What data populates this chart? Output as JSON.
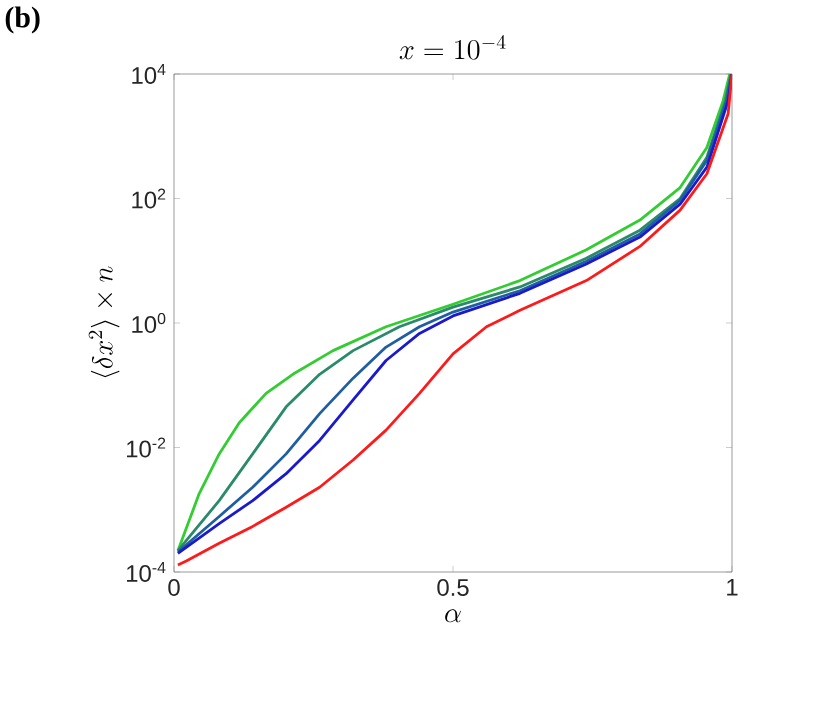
{
  "chart_data": {
    "type": "line",
    "title": "x = 10^{-4}",
    "xlabel": "\\alpha",
    "ylabel": "\\langle \\delta x^2 \\rangle \\times n",
    "annotations": [
      "(b)"
    ],
    "log": "y",
    "marker": "none",
    "line_style": "solid",
    "xlim": [
      0,
      1
    ],
    "xticks": [
      0,
      0.5,
      1
    ],
    "ylim": [
      0.0001,
      10000
    ],
    "yticks": [
      {
        "value": 0.0001,
        "label": "10$^{-4}$"
      },
      {
        "value": 0.01,
        "label": "10$^{-2}$"
      },
      {
        "value": 1,
        "label": "10$^{0}$"
      },
      {
        "value": 100,
        "label": "10$^{2}$"
      },
      {
        "value": 10000,
        "label": "10$^{4}$"
      }
    ],
    "series": [
      {
        "color": "#33cc33",
        "x": [
          0.007,
          0.045,
          0.081,
          0.117,
          0.165,
          0.213,
          0.285,
          0.38,
          0.5,
          0.62,
          0.739,
          0.835,
          0.907,
          0.955,
          0.984,
          0.996
        ],
        "values": [
          0.00022,
          0.0018,
          0.0079,
          0.025,
          0.074,
          0.15,
          0.36,
          0.87,
          2.0,
          4.8,
          15,
          45,
          150,
          660,
          3700,
          10000
        ]
      },
      {
        "color": "#2a8a6a",
        "x": [
          0.007,
          0.081,
          0.141,
          0.201,
          0.261,
          0.321,
          0.404,
          0.5,
          0.62,
          0.739,
          0.835,
          0.907,
          0.955,
          0.988,
          0.998
        ],
        "values": [
          0.00022,
          0.0014,
          0.0079,
          0.045,
          0.15,
          0.36,
          0.87,
          1.8,
          3.8,
          11,
          31,
          100,
          460,
          3700,
          10000
        ]
      },
      {
        "color": "#1f5f9f",
        "x": [
          0.007,
          0.081,
          0.141,
          0.201,
          0.261,
          0.321,
          0.38,
          0.44,
          0.5,
          0.62,
          0.739,
          0.835,
          0.907,
          0.955,
          0.99,
          0.999
        ],
        "values": [
          0.00021,
          0.00078,
          0.0023,
          0.0079,
          0.035,
          0.13,
          0.41,
          0.87,
          1.5,
          3.3,
          9.8,
          27,
          93,
          410,
          3700,
          10000
        ]
      },
      {
        "color": "#1a1acc",
        "x": [
          0.007,
          0.081,
          0.141,
          0.201,
          0.261,
          0.321,
          0.38,
          0.44,
          0.5,
          0.62,
          0.739,
          0.835,
          0.907,
          0.955,
          0.993,
          1.0
        ],
        "values": [
          0.0002,
          0.0006,
          0.0014,
          0.0038,
          0.013,
          0.058,
          0.25,
          0.68,
          1.3,
          3.0,
          8.9,
          24,
          81,
          320,
          3700,
          10000
        ]
      },
      {
        "color": "#ff1a1a",
        "x": [
          0.007,
          0.022,
          0.081,
          0.141,
          0.201,
          0.261,
          0.321,
          0.38,
          0.44,
          0.5,
          0.56,
          0.62,
          0.739,
          0.835,
          0.907,
          0.955,
          0.993,
          1.0
        ],
        "values": [
          0.00013,
          0.00015,
          0.00029,
          0.00054,
          0.0011,
          0.0023,
          0.0063,
          0.019,
          0.074,
          0.32,
          0.87,
          1.6,
          4.8,
          17,
          65,
          250,
          2300,
          10000
        ]
      }
    ]
  }
}
